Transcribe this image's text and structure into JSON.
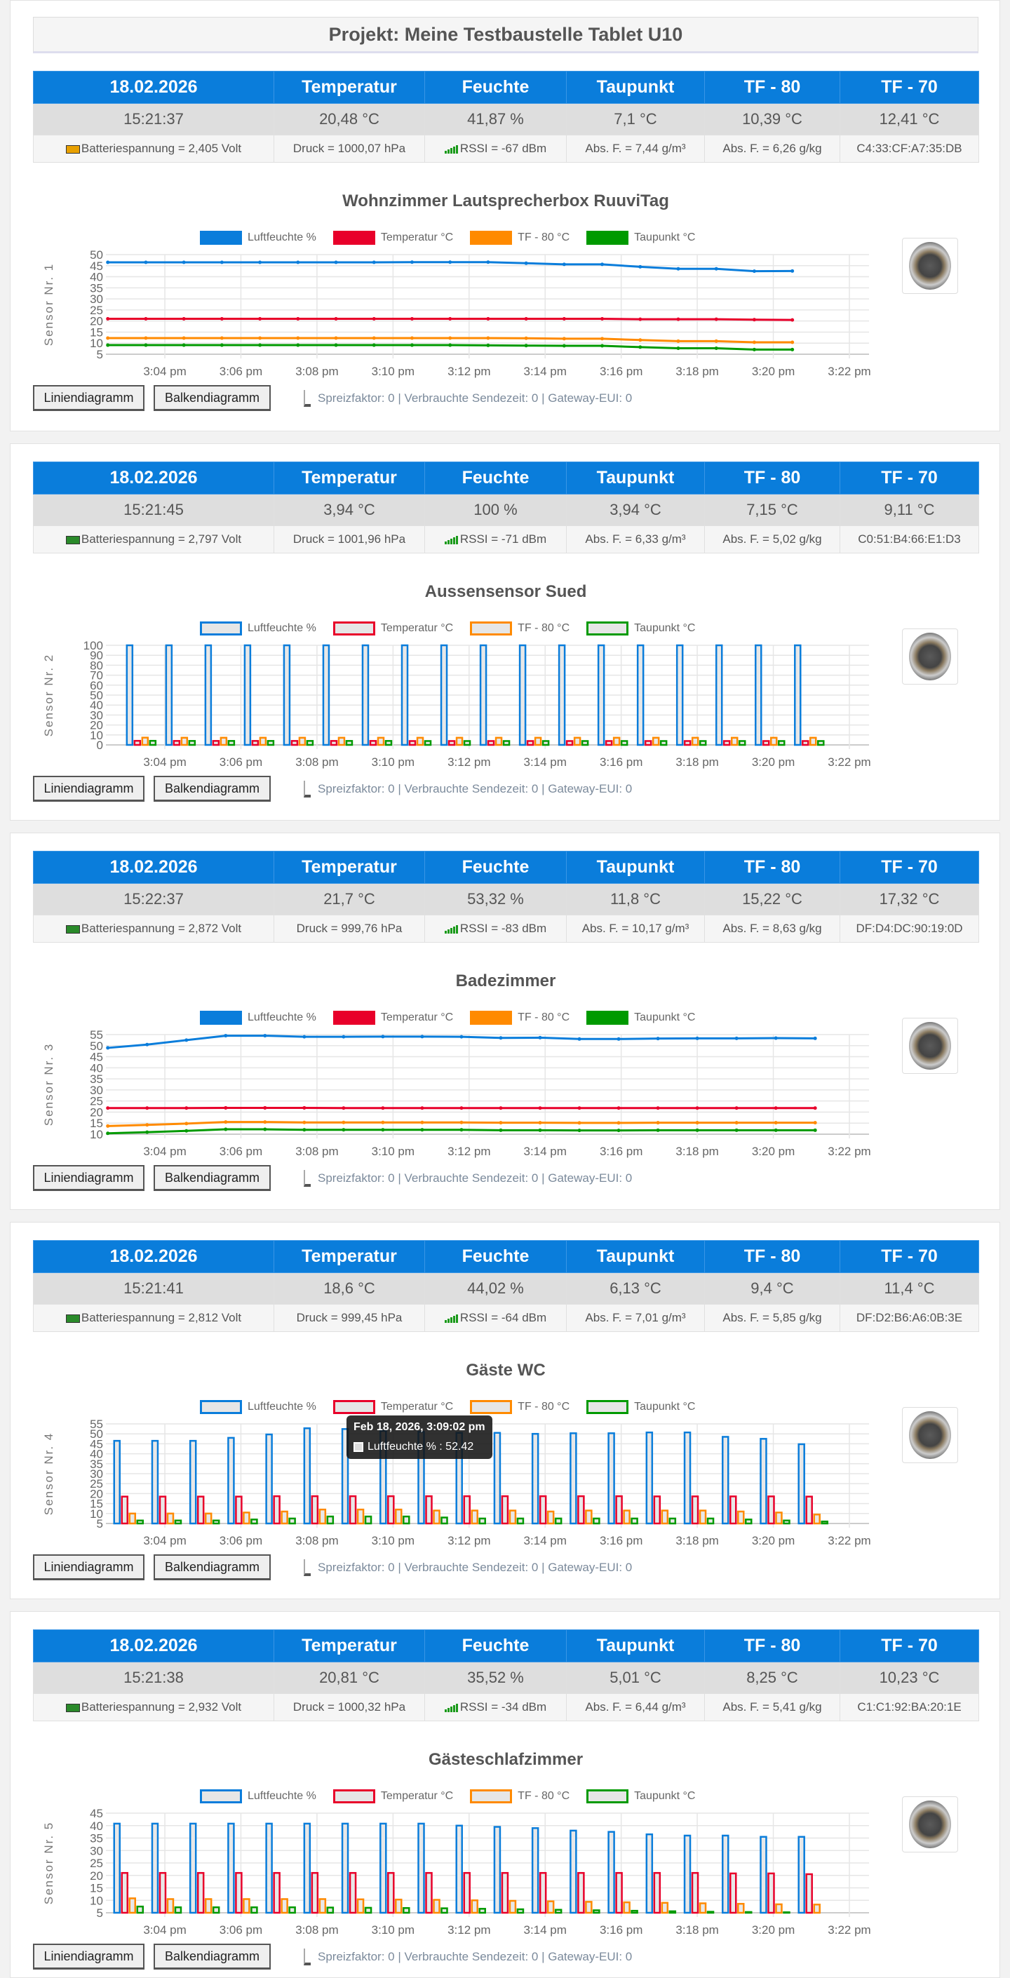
{
  "project_title": "Projekt: Meine Testbaustelle Tablet U10",
  "colors": {
    "header_bg": "#0a7ddb",
    "humidity": "#0a7ddb",
    "temperature": "#e8002a",
    "tf80": "#ff8a00",
    "dewpoint": "#009a00"
  },
  "legend": [
    "Luftfeuchte %",
    "Temperatur °C",
    "TF - 80 °C",
    "Taupunkt °C"
  ],
  "buttons": {
    "line": "Liniendiagramm",
    "bar": "Balkendiagramm"
  },
  "info_text": "Spreizfaktor: 0 | Verbrauchte Sendezeit: 0 | Gateway-EUI: 0",
  "x_ticks": [
    "3:04 pm",
    "3:06 pm",
    "3:08 pm",
    "3:10 pm",
    "3:12 pm",
    "3:14 pm",
    "3:16 pm",
    "3:18 pm",
    "3:20 pm",
    "3:22 pm"
  ],
  "panels": [
    {
      "headers": [
        "18.02.2026",
        "Temperatur",
        "Feuchte",
        "Taupunkt",
        "TF - 80",
        "TF - 70"
      ],
      "row2": [
        "15:21:37",
        "20,48 °C",
        "41,87 %",
        "7,1 °C",
        "10,39 °C",
        "12,41 °C"
      ],
      "row3": [
        "Batteriespannung = 2,405 Volt",
        "Druck = 1000,07 hPa",
        "RSSI = -67 dBm",
        "Abs. F. = 7,44 g/m³",
        "Abs. F. = 6,26 g/kg",
        "C4:33:CF:A7:35:DB"
      ],
      "battery_color": "#e8a000",
      "chart": {
        "title": "Wohnzimmer Lautsprecherbox RuuviTag",
        "ylabel": "Sensor Nr. 1",
        "type": "line",
        "ylim": [
          5,
          50
        ],
        "ystep": 5,
        "x_start": "15:02:30",
        "x_step_s": 60,
        "series": [
          [
            46.5,
            46.5,
            46.5,
            46.5,
            46.5,
            46.5,
            46.5,
            46.5,
            46.6,
            46.6,
            46.6,
            46.1,
            45.6,
            45.6,
            44.5,
            43.6,
            43.6,
            42.5,
            42.6
          ],
          [
            21,
            21,
            21,
            21,
            21,
            21,
            21,
            21,
            21,
            21,
            21,
            21,
            21,
            21,
            20.8,
            20.8,
            20.8,
            20.6,
            20.5
          ],
          [
            12.3,
            12.3,
            12.3,
            12.3,
            12.3,
            12.3,
            12.3,
            12.3,
            12.3,
            12.3,
            12.3,
            12.2,
            12,
            12,
            11.4,
            10.9,
            10.9,
            10.4,
            10.4
          ],
          [
            9.1,
            9.1,
            9.1,
            9.1,
            9.1,
            9.1,
            9.1,
            9.1,
            9.1,
            9.1,
            9,
            8.9,
            8.8,
            8.8,
            8.2,
            7.7,
            7.7,
            7.1,
            7.1
          ]
        ]
      }
    },
    {
      "headers": [
        "18.02.2026",
        "Temperatur",
        "Feuchte",
        "Taupunkt",
        "TF - 80",
        "TF - 70"
      ],
      "row2": [
        "15:21:45",
        "3,94 °C",
        "100 %",
        "3,94 °C",
        "7,15 °C",
        "9,11 °C"
      ],
      "row3": [
        "Batteriespannung = 2,797 Volt",
        "Druck = 1001,96 hPa",
        "RSSI = -71 dBm",
        "Abs. F. = 6,33 g/m³",
        "Abs. F. = 5,02 g/kg",
        "C0:51:B4:66:E1:D3"
      ],
      "battery_color": "#2a8a2a",
      "chart": {
        "title": "Aussensensor Sued",
        "ylabel": "Sensor Nr. 2",
        "type": "bar",
        "ylim": [
          0,
          100
        ],
        "ystep": 10,
        "x_start": "15:03:00",
        "x_step_s": 62,
        "series": [
          [
            100,
            100,
            100,
            100,
            100,
            100,
            100,
            100,
            100,
            100,
            100,
            100,
            100,
            100,
            100,
            100,
            100,
            100
          ],
          [
            4.1,
            4.0,
            4.0,
            4.0,
            4.0,
            4.0,
            4.0,
            3.9,
            3.9,
            3.9,
            3.9,
            3.9,
            3.9,
            3.9,
            3.9,
            3.9,
            3.9,
            3.9
          ],
          [
            7.3,
            7.2,
            7.2,
            7.2,
            7.2,
            7.2,
            7.2,
            7.2,
            7.2,
            7.2,
            7.2,
            7.2,
            7.2,
            7.2,
            7.2,
            7.2,
            7.2,
            7.2
          ],
          [
            4.1,
            4.0,
            4.0,
            4.0,
            4.0,
            4.0,
            4.0,
            3.9,
            3.9,
            3.9,
            3.9,
            3.9,
            3.9,
            3.9,
            3.9,
            3.9,
            3.9,
            3.9
          ]
        ]
      }
    },
    {
      "headers": [
        "18.02.2026",
        "Temperatur",
        "Feuchte",
        "Taupunkt",
        "TF - 80",
        "TF - 70"
      ],
      "row2": [
        "15:22:37",
        "21,7 °C",
        "53,32 %",
        "11,8 °C",
        "15,22 °C",
        "17,32 °C"
      ],
      "row3": [
        "Batteriespannung = 2,872 Volt",
        "Druck = 999,76 hPa",
        "RSSI = -83 dBm",
        "Abs. F. = 10,17 g/m³",
        "Abs. F. = 8,63 g/kg",
        "DF:D4:DC:90:19:0D"
      ],
      "battery_color": "#2a8a2a",
      "chart": {
        "title": "Badezimmer",
        "ylabel": "Sensor Nr. 3",
        "type": "line",
        "ylim": [
          10,
          55
        ],
        "ystep": 5,
        "x_start": "15:02:30",
        "x_step_s": 62,
        "series": [
          [
            49,
            50.5,
            52.5,
            54.5,
            54.5,
            54,
            54,
            54.1,
            54.1,
            54,
            53.5,
            53.6,
            53,
            53,
            53.2,
            53.3,
            53.3,
            53.4,
            53.3
          ],
          [
            21.8,
            21.8,
            21.8,
            21.9,
            21.9,
            21.9,
            21.8,
            21.8,
            21.8,
            21.8,
            21.8,
            21.8,
            21.8,
            21.8,
            21.8,
            21.8,
            21.8,
            21.8,
            21.8
          ],
          [
            13.7,
            14.2,
            14.8,
            15.5,
            15.5,
            15.3,
            15.3,
            15.3,
            15.3,
            15.3,
            15.2,
            15.2,
            15.1,
            15.1,
            15.2,
            15.2,
            15.2,
            15.2,
            15.2
          ],
          [
            10.4,
            10.9,
            11.5,
            12.2,
            12.2,
            12,
            12,
            12,
            12,
            12,
            11.8,
            11.8,
            11.7,
            11.7,
            11.8,
            11.8,
            11.8,
            11.8,
            11.8
          ]
        ]
      }
    },
    {
      "headers": [
        "18.02.2026",
        "Temperatur",
        "Feuchte",
        "Taupunkt",
        "TF - 80",
        "TF - 70"
      ],
      "row2": [
        "15:21:41",
        "18,6 °C",
        "44,02 %",
        "6,13 °C",
        "9,4 °C",
        "11,4 °C"
      ],
      "row3": [
        "Batteriespannung = 2,812 Volt",
        "Druck = 999,45 hPa",
        "RSSI = -64 dBm",
        "Abs. F. = 7,01 g/m³",
        "Abs. F. = 5,85 g/kg",
        "DF:D2:B6:A6:0B:3E"
      ],
      "battery_color": "#2a8a2a",
      "chart": {
        "title": "Gäste WC",
        "ylabel": "Sensor Nr. 4",
        "type": "bar",
        "ylim": [
          5,
          55
        ],
        "ystep": 5,
        "x_start": "15:02:40",
        "x_step_s": 60,
        "tooltip": {
          "title": "Feb 18, 2026, 3:09:02 pm",
          "label": "Luftfeuchte % : 52.42"
        },
        "series": [
          [
            46.5,
            46.5,
            46.5,
            48,
            49.7,
            52.8,
            52.42,
            51.5,
            51,
            50.5,
            50.5,
            50,
            50.3,
            50.3,
            50.7,
            50.7,
            48.5,
            47.5,
            44.8
          ],
          [
            18.5,
            18.5,
            18.5,
            18.5,
            18.7,
            18.7,
            18.7,
            18.7,
            18.7,
            18.7,
            18.7,
            18.7,
            18.7,
            18.7,
            18.6,
            18.6,
            18.6,
            18.6,
            18.5
          ],
          [
            10,
            10,
            10,
            10.5,
            11,
            12,
            12,
            12,
            11.5,
            11.5,
            11.5,
            11,
            11.5,
            11.5,
            11.5,
            11.5,
            11,
            10.5,
            9.5
          ],
          [
            6.5,
            6.5,
            6.5,
            7,
            7.5,
            8.5,
            8.5,
            8.5,
            8,
            7.5,
            7.5,
            7.5,
            7.5,
            7.5,
            7.5,
            7.5,
            7,
            6.5,
            6
          ]
        ]
      }
    },
    {
      "headers": [
        "18.02.2026",
        "Temperatur",
        "Feuchte",
        "Taupunkt",
        "TF - 80",
        "TF - 70"
      ],
      "row2": [
        "15:21:38",
        "20,81 °C",
        "35,52 %",
        "5,01 °C",
        "8,25 °C",
        "10,23 °C"
      ],
      "row3": [
        "Batteriespannung = 2,932 Volt",
        "Druck = 1000,32 hPa",
        "RSSI = -34 dBm",
        "Abs. F. = 6,44 g/m³",
        "Abs. F. = 5,41 g/kg",
        "C1:C1:92:BA:20:1E"
      ],
      "battery_color": "#2a8a2a",
      "chart": {
        "title": "Gästeschlafzimmer",
        "ylabel": "Sensor Nr. 5",
        "type": "bar",
        "ylim": [
          5,
          45
        ],
        "ystep": 5,
        "x_start": "15:02:40",
        "x_step_s": 60,
        "series": [
          [
            40.8,
            40.8,
            40.8,
            40.8,
            40.8,
            40.8,
            40.8,
            40.8,
            40.8,
            40,
            39.5,
            39,
            38,
            37.5,
            36.5,
            36,
            36,
            35.5,
            35.5
          ],
          [
            21,
            21,
            21,
            21,
            21,
            21,
            21,
            21,
            21,
            21,
            21,
            21,
            21,
            21,
            21,
            21,
            20.8,
            20.8,
            20.5
          ],
          [
            10.8,
            10.5,
            10.5,
            10.5,
            10.5,
            10.5,
            10.4,
            10.3,
            10.2,
            10,
            9.8,
            9.6,
            9.4,
            9.2,
            9,
            8.8,
            8.6,
            8.4,
            8.3
          ],
          [
            7.5,
            7.2,
            7.2,
            7.2,
            7.2,
            7.1,
            7,
            6.9,
            6.8,
            6.6,
            6.4,
            6.2,
            6,
            5.8,
            5.6,
            5.4,
            5.3,
            5.2,
            5.0
          ]
        ]
      }
    }
  ]
}
